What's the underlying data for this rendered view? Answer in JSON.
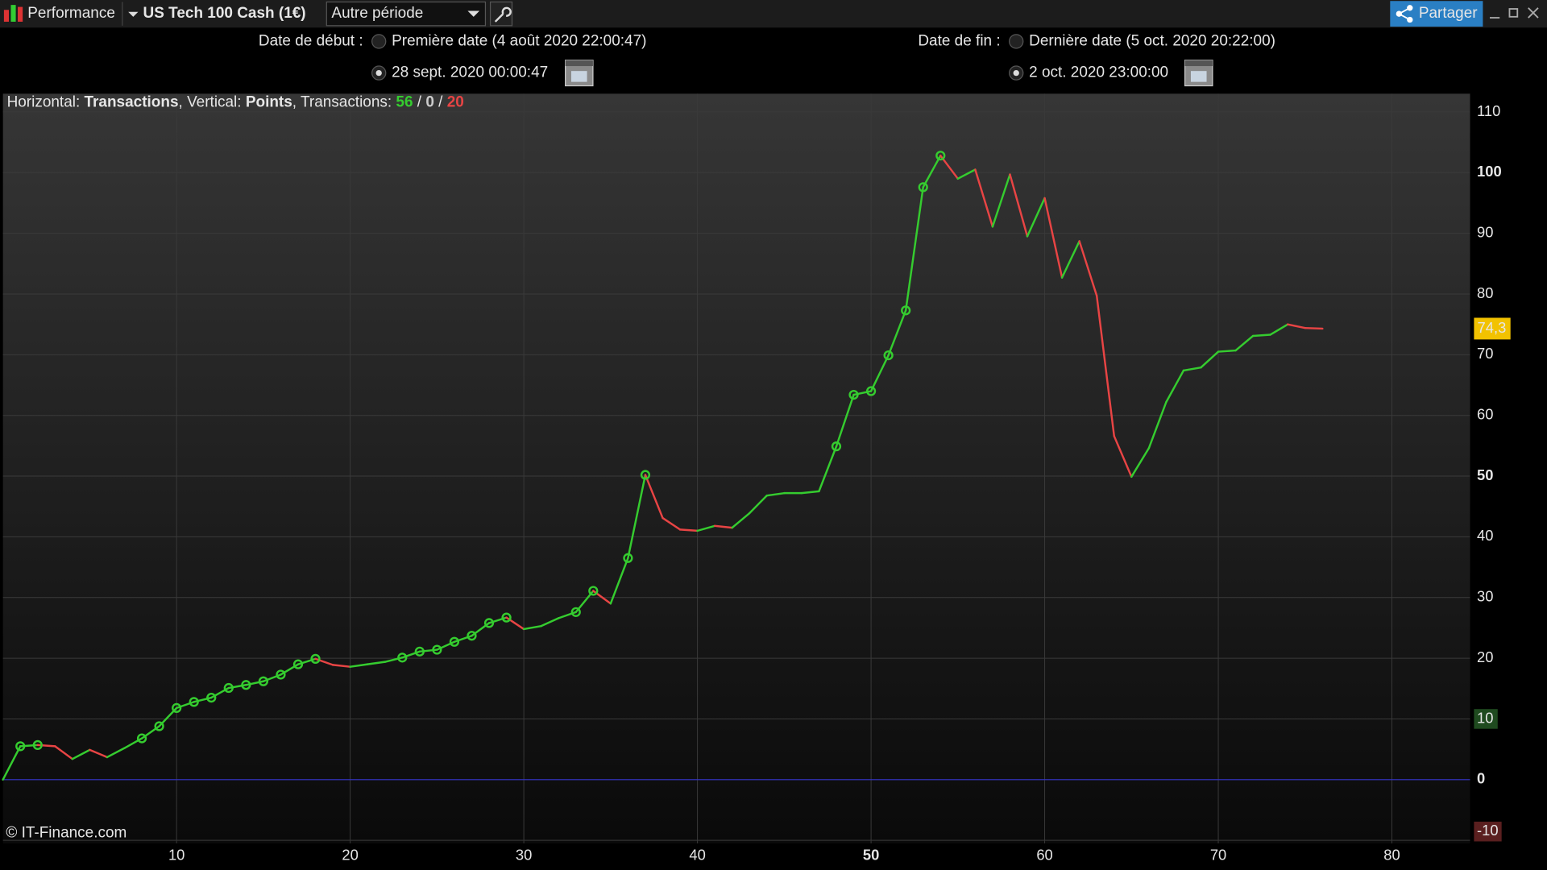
{
  "toolbar": {
    "mode": "Performance",
    "instrument": "US Tech 100 Cash (1€)",
    "period": "Autre période",
    "share": "Partager"
  },
  "dates": {
    "start_label": "Date de début :",
    "start_first": "Première date (4 août 2020 22:00:47)",
    "start_custom": "28 sept. 2020 00:00:47",
    "end_label": "Date de fin :",
    "end_last": "Dernière date (5 oct. 2020 20:22:00)",
    "end_custom": "2 oct. 2020 23:00:00"
  },
  "info": {
    "horizontal_label": "Horizontal: ",
    "horizontal_value": "Transactions",
    "vertical_label": ", Vertical: ",
    "vertical_value": "Points",
    "transactions_label": ", Transactions: ",
    "winning": 56,
    "sep1": " / ",
    "neutral": 0,
    "sep2": " / ",
    "losing": 20
  },
  "footer": "© IT-Finance.com",
  "chart_data": {
    "type": "line",
    "x": [
      0,
      1,
      2,
      3,
      4,
      5,
      6,
      7,
      8,
      9,
      10,
      11,
      12,
      13,
      14,
      15,
      16,
      17,
      18,
      19,
      20,
      21,
      22,
      23,
      24,
      25,
      26,
      27,
      28,
      29,
      30,
      31,
      32,
      33,
      34,
      35,
      36,
      37,
      38,
      39,
      40,
      41,
      42,
      43,
      44,
      45,
      46,
      47,
      48,
      49,
      50,
      51,
      52,
      53,
      54,
      55,
      56,
      57,
      58,
      59,
      60,
      61,
      62,
      63,
      64,
      65,
      66,
      67,
      68,
      69,
      70,
      71,
      72,
      73,
      74,
      75,
      76
    ],
    "series": [
      {
        "values": [
          0,
          5.5,
          5.7,
          5.5,
          3.4,
          4.9,
          3.7,
          5.2,
          6.8,
          8.8,
          11.8,
          12.8,
          13.5,
          15.1,
          15.6,
          16.2,
          17.3,
          19.0,
          19.9,
          18.9,
          18.6,
          19.0,
          19.4,
          20.1,
          21.1,
          21.4,
          22.7,
          23.7,
          25.8,
          26.7,
          24.8,
          25.3,
          26.6,
          27.6,
          31.1,
          29.0,
          36.5,
          50.2,
          43.1,
          41.2,
          41.0,
          41.8,
          41.5,
          43.9,
          46.8,
          47.2,
          47.2,
          47.5,
          54.9,
          63.4,
          64.0,
          69.9,
          77.3,
          97.6,
          102.8,
          99.0,
          100.5,
          91.1,
          99.7,
          89.5,
          95.8,
          82.7,
          88.7,
          79.7,
          56.6,
          49.9,
          54.6,
          62.2,
          67.4,
          67.9,
          70.5,
          70.7,
          73.1,
          73.3,
          75.0,
          74.4,
          74.3
        ],
        "up_color": "#35cc2f",
        "down_color": "#e84444"
      }
    ],
    "current_value_label": "74,3",
    "xlim": [
      0,
      84.5
    ],
    "xticks": [
      10,
      20,
      30,
      40,
      50,
      60,
      70,
      80
    ],
    "ylim": [
      -10.5,
      113
    ],
    "yticks": [
      -10,
      0,
      10,
      20,
      30,
      40,
      50,
      60,
      70,
      80,
      90,
      100,
      110
    ],
    "grid": true,
    "zero_line_color": "#3333cc"
  }
}
